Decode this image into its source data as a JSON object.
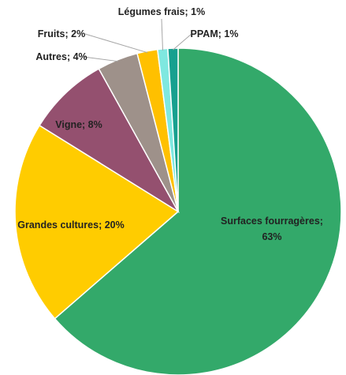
{
  "chart_data": {
    "type": "pie",
    "values": [
      63,
      20,
      8,
      4,
      2,
      1,
      1
    ],
    "value_labels": [
      "Surfaces fourragères; 63%",
      "Grandes cultures; 20%",
      "Vigne; 8%",
      "Autres; 4%",
      "Fruits; 2%",
      "Légumes frais; 1%",
      "PPAM; 1%"
    ],
    "colors": [
      "#33a96a",
      "#ffcc00",
      "#94506f",
      "#9e918a",
      "#ffc000",
      "#7fe8e0",
      "#17a08f"
    ]
  }
}
